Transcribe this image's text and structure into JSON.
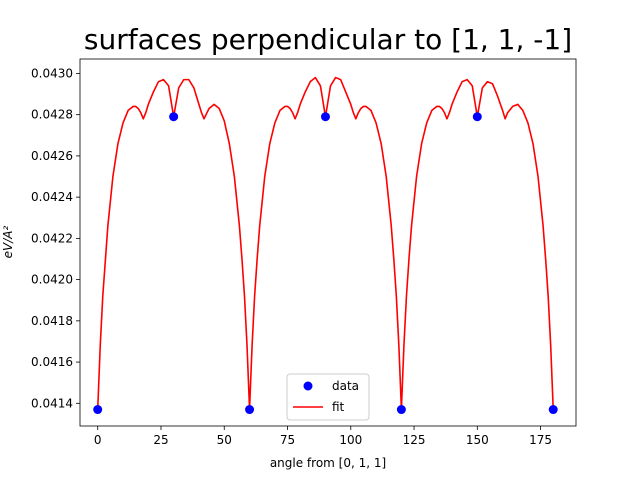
{
  "chart_data": {
    "type": "line",
    "title": "surfaces perpendicular to [1, 1, -1]",
    "xlabel": "angle from [0, 1, 1]",
    "ylabel": "eV/A²",
    "xlim": [
      -7,
      189
    ],
    "ylim": [
      0.04129,
      0.04307
    ],
    "xticks": [
      0,
      25,
      50,
      75,
      100,
      125,
      150,
      175
    ],
    "xtick_labels": [
      "0",
      "25",
      "50",
      "75",
      "100",
      "125",
      "150",
      "175"
    ],
    "yticks": [
      0.0414,
      0.0416,
      0.0418,
      0.042,
      0.0422,
      0.0424,
      0.0426,
      0.0428,
      0.043
    ],
    "ytick_labels": [
      "0.0414",
      "0.0416",
      "0.0418",
      "0.0420",
      "0.0422",
      "0.0424",
      "0.0426",
      "0.0428",
      "0.0430"
    ],
    "grid": false,
    "legend": "lower center",
    "series": [
      {
        "name": "data",
        "style": "markers",
        "color": "#0000ff",
        "x": [
          0,
          30,
          60,
          90,
          120,
          150,
          180
        ],
        "y": [
          0.04137,
          0.04279,
          0.04137,
          0.04279,
          0.04137,
          0.04279,
          0.04137
        ]
      },
      {
        "name": "fit",
        "style": "line",
        "color": "#ff0000",
        "x": [
          0,
          1,
          2,
          4,
          6,
          8,
          10,
          12,
          14,
          15,
          16,
          17,
          18,
          19,
          20,
          22,
          24,
          26,
          28,
          30,
          32,
          34,
          36,
          38,
          40,
          41,
          42,
          44,
          46,
          48,
          50,
          52,
          54,
          56,
          57,
          58,
          59,
          60,
          61,
          62,
          63,
          64,
          66,
          68,
          70,
          72,
          74,
          75,
          76,
          77,
          78,
          79,
          80,
          82,
          84,
          86,
          88,
          90,
          92,
          94,
          96,
          98,
          100,
          101,
          102,
          103,
          104,
          105,
          106,
          108,
          110,
          112,
          114,
          116,
          117,
          118,
          119,
          120,
          121,
          122,
          123,
          124,
          126,
          128,
          130,
          132,
          134,
          135,
          136,
          137,
          138,
          139,
          140,
          142,
          144,
          146,
          148,
          150,
          152,
          154,
          156,
          158,
          160,
          161,
          162,
          164,
          166,
          168,
          170,
          172,
          174,
          176,
          177,
          178,
          179,
          180
        ],
        "y": [
          0.04137,
          0.04168,
          0.04192,
          0.04226,
          0.0425,
          0.04266,
          0.04276,
          0.04282,
          0.04284,
          0.04284,
          0.04283,
          0.04281,
          0.04278,
          0.04281,
          0.04285,
          0.04291,
          0.04296,
          0.04297,
          0.04294,
          0.04279,
          0.04293,
          0.04297,
          0.04297,
          0.04293,
          0.04285,
          0.04281,
          0.04278,
          0.04283,
          0.04285,
          0.04283,
          0.04277,
          0.04266,
          0.0425,
          0.04226,
          0.0421,
          0.04192,
          0.04168,
          0.04137,
          0.04168,
          0.04192,
          0.0421,
          0.04226,
          0.0425,
          0.04266,
          0.04276,
          0.04282,
          0.04284,
          0.04284,
          0.04283,
          0.04281,
          0.04278,
          0.04281,
          0.04285,
          0.04291,
          0.04296,
          0.04298,
          0.04294,
          0.04279,
          0.04294,
          0.04298,
          0.04297,
          0.04291,
          0.04285,
          0.04281,
          0.04278,
          0.04281,
          0.04283,
          0.04284,
          0.04284,
          0.04282,
          0.04276,
          0.04266,
          0.0425,
          0.04226,
          0.0421,
          0.04192,
          0.04168,
          0.04137,
          0.04168,
          0.04192,
          0.0421,
          0.04226,
          0.0425,
          0.04266,
          0.04276,
          0.04282,
          0.04284,
          0.04284,
          0.04283,
          0.04281,
          0.04278,
          0.04281,
          0.04285,
          0.04291,
          0.04296,
          0.04297,
          0.04294,
          0.04279,
          0.04293,
          0.04296,
          0.04295,
          0.04289,
          0.04282,
          0.04278,
          0.04281,
          0.04284,
          0.04285,
          0.04282,
          0.04276,
          0.04266,
          0.0425,
          0.04226,
          0.0421,
          0.04192,
          0.04168,
          0.04137
        ]
      }
    ]
  }
}
